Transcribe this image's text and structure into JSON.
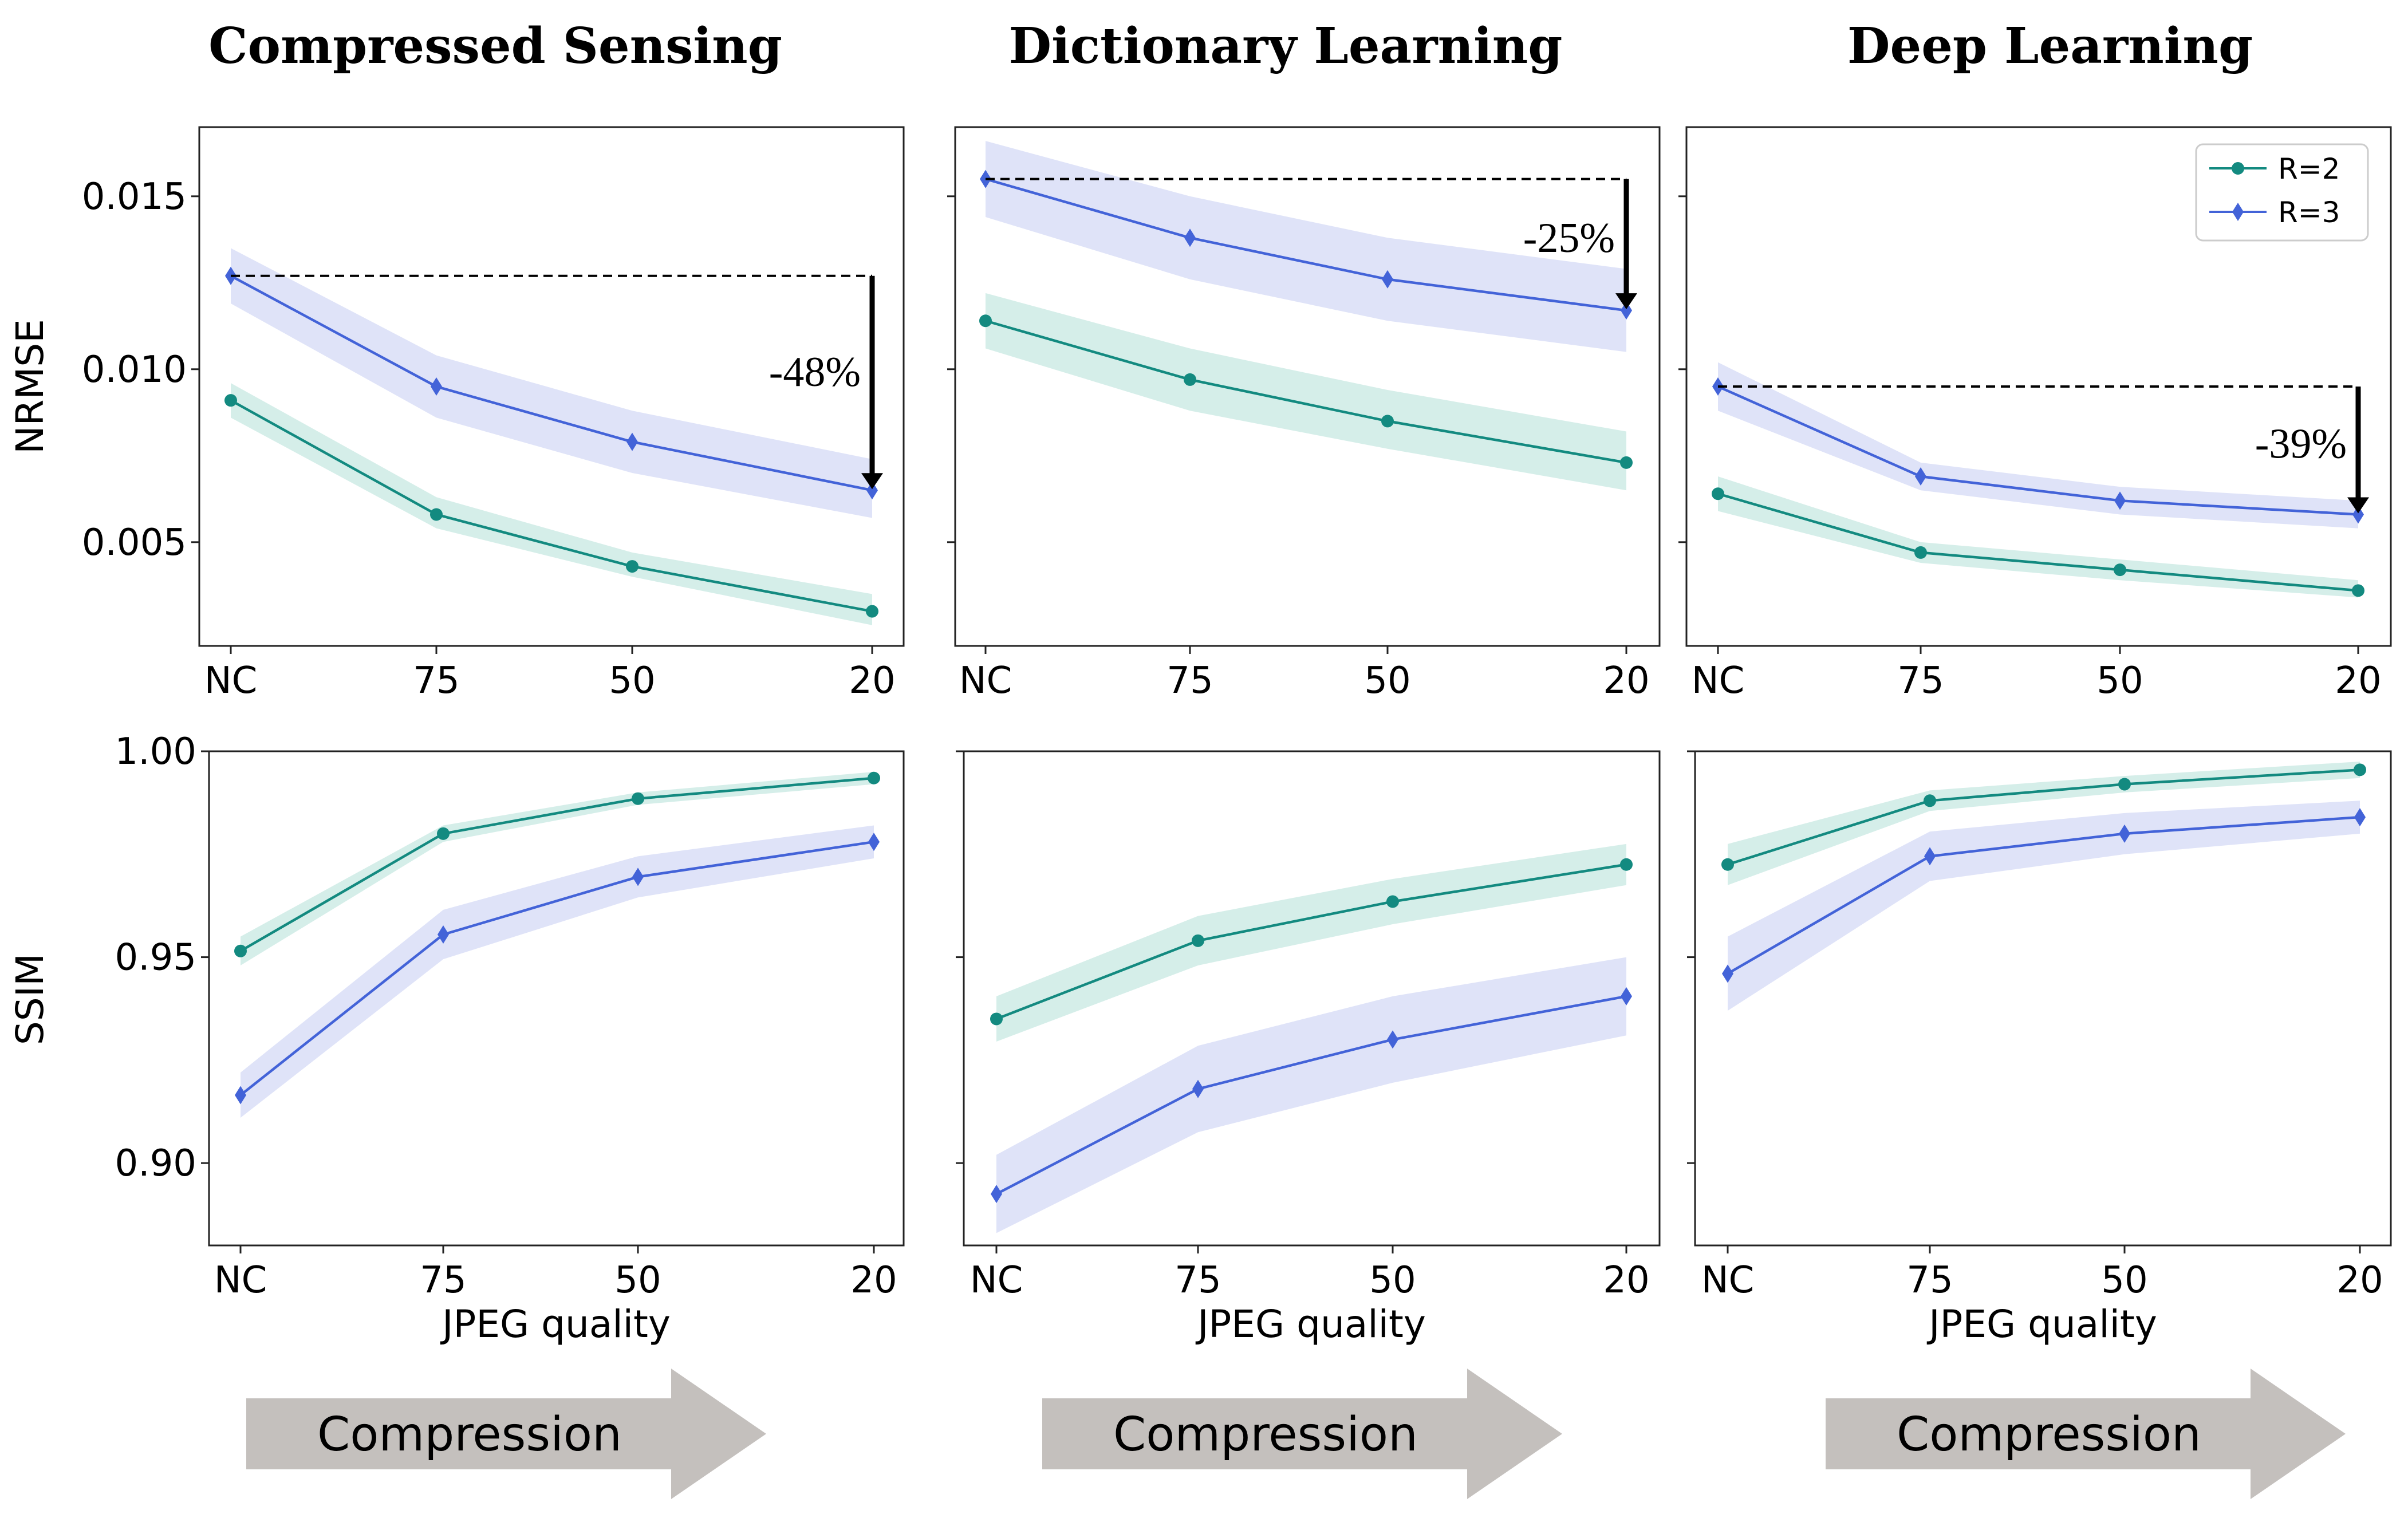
{
  "colors": {
    "r2": "#138a80",
    "r3": "#4363d8",
    "r2_band": "#c7e8e2",
    "r3_band": "#d4daf5",
    "compression_arrow": "#c4c0bd"
  },
  "columns": [
    {
      "title": "Compressed Sensing",
      "compression_label": "Compression"
    },
    {
      "title": "Dictionary Learning",
      "compression_label": "Compression"
    },
    {
      "title": "Deep Learning",
      "compression_label": "Compression"
    }
  ],
  "legend": {
    "entries": [
      "R=2",
      "R=3"
    ]
  },
  "chart_data": [
    {
      "type": "line",
      "row": "NRMSE",
      "column": "Compressed Sensing",
      "categories": [
        "NC",
        "75",
        "50",
        "20"
      ],
      "ylabel": "NRMSE",
      "xlabel": "",
      "ylim": [
        0.002,
        0.017
      ],
      "yticks": [
        "0.015",
        "0.010",
        "0.005"
      ],
      "ytick_values": [
        0.015,
        0.01,
        0.005
      ],
      "series": [
        {
          "name": "R=2",
          "values": [
            0.0091,
            0.0058,
            0.0043,
            0.003
          ],
          "lower": [
            0.0086,
            0.0054,
            0.004,
            0.0026
          ],
          "upper": [
            0.0096,
            0.0063,
            0.0047,
            0.0035
          ]
        },
        {
          "name": "R=3",
          "values": [
            0.0127,
            0.0095,
            0.0079,
            0.0065
          ],
          "lower": [
            0.0119,
            0.0086,
            0.007,
            0.0057
          ],
          "upper": [
            0.0135,
            0.0104,
            0.0088,
            0.0074
          ]
        }
      ],
      "annotation": {
        "text": "-48%",
        "from": 0.0127,
        "to": 0.0065
      }
    },
    {
      "type": "line",
      "row": "NRMSE",
      "column": "Dictionary Learning",
      "categories": [
        "NC",
        "75",
        "50",
        "20"
      ],
      "ylabel": "",
      "xlabel": "",
      "ylim": [
        0.002,
        0.017
      ],
      "yticks": [],
      "ytick_values": [
        0.015,
        0.01,
        0.005
      ],
      "series": [
        {
          "name": "R=2",
          "values": [
            0.0114,
            0.0097,
            0.0085,
            0.0073
          ],
          "lower": [
            0.0106,
            0.0088,
            0.0077,
            0.0065
          ],
          "upper": [
            0.0122,
            0.0106,
            0.0094,
            0.0082
          ]
        },
        {
          "name": "R=3",
          "values": [
            0.0155,
            0.0138,
            0.0126,
            0.0117
          ],
          "lower": [
            0.0144,
            0.0126,
            0.0114,
            0.0105
          ],
          "upper": [
            0.0166,
            0.015,
            0.0138,
            0.0129
          ]
        }
      ],
      "annotation": {
        "text": "-25%",
        "from": 0.0155,
        "to": 0.0117
      }
    },
    {
      "type": "line",
      "row": "NRMSE",
      "column": "Deep Learning",
      "categories": [
        "NC",
        "75",
        "50",
        "20"
      ],
      "ylabel": "",
      "xlabel": "",
      "ylim": [
        0.002,
        0.017
      ],
      "yticks": [],
      "ytick_values": [
        0.015,
        0.01,
        0.005
      ],
      "series": [
        {
          "name": "R=2",
          "values": [
            0.0064,
            0.0047,
            0.0042,
            0.0036
          ],
          "lower": [
            0.0059,
            0.0044,
            0.0039,
            0.0034
          ],
          "upper": [
            0.0069,
            0.005,
            0.0045,
            0.0039
          ]
        },
        {
          "name": "R=3",
          "values": [
            0.0095,
            0.0069,
            0.0062,
            0.0058
          ],
          "lower": [
            0.0088,
            0.0065,
            0.0058,
            0.0054
          ],
          "upper": [
            0.0102,
            0.0073,
            0.0066,
            0.0062
          ]
        }
      ],
      "annotation": {
        "text": "-39%",
        "from": 0.0095,
        "to": 0.0058
      }
    },
    {
      "type": "line",
      "row": "SSIM",
      "column": "Compressed Sensing",
      "categories": [
        "NC",
        "75",
        "50",
        "20"
      ],
      "ylabel": "SSIM",
      "xlabel": "JPEG quality",
      "ylim": [
        0.88,
        1.0
      ],
      "yticks": [
        "1.00",
        "0.95",
        "0.90"
      ],
      "ytick_values": [
        1.0,
        0.95,
        0.9
      ],
      "series": [
        {
          "name": "R=2",
          "values": [
            0.9515,
            0.98,
            0.9885,
            0.9935
          ],
          "lower": [
            0.948,
            0.978,
            0.987,
            0.992
          ],
          "upper": [
            0.955,
            0.982,
            0.99,
            0.995
          ]
        },
        {
          "name": "R=3",
          "values": [
            0.9165,
            0.9555,
            0.9695,
            0.978
          ],
          "lower": [
            0.911,
            0.9495,
            0.9645,
            0.974
          ],
          "upper": [
            0.922,
            0.9615,
            0.9745,
            0.982
          ]
        }
      ]
    },
    {
      "type": "line",
      "row": "SSIM",
      "column": "Dictionary Learning",
      "categories": [
        "NC",
        "75",
        "50",
        "20"
      ],
      "ylabel": "",
      "xlabel": "JPEG quality",
      "ylim": [
        0.88,
        1.0
      ],
      "yticks": [],
      "ytick_values": [
        1.0,
        0.95,
        0.9
      ],
      "series": [
        {
          "name": "R=2",
          "values": [
            0.935,
            0.954,
            0.9635,
            0.9725
          ],
          "lower": [
            0.9295,
            0.948,
            0.958,
            0.9675
          ],
          "upper": [
            0.9405,
            0.96,
            0.969,
            0.9775
          ]
        },
        {
          "name": "R=3",
          "values": [
            0.8925,
            0.918,
            0.93,
            0.9405
          ],
          "lower": [
            0.883,
            0.9075,
            0.9195,
            0.931
          ],
          "upper": [
            0.902,
            0.9285,
            0.9405,
            0.95
          ]
        }
      ]
    },
    {
      "type": "line",
      "row": "SSIM",
      "column": "Deep Learning",
      "categories": [
        "NC",
        "75",
        "50",
        "20"
      ],
      "ylabel": "",
      "xlabel": "JPEG quality",
      "ylim": [
        0.88,
        1.0
      ],
      "yticks": [],
      "ytick_values": [
        1.0,
        0.95,
        0.9
      ],
      "series": [
        {
          "name": "R=2",
          "values": [
            0.9725,
            0.988,
            0.992,
            0.9955
          ],
          "lower": [
            0.9675,
            0.9855,
            0.99,
            0.9935
          ],
          "upper": [
            0.9775,
            0.9905,
            0.994,
            0.9975
          ]
        },
        {
          "name": "R=3",
          "values": [
            0.946,
            0.9745,
            0.98,
            0.984
          ],
          "lower": [
            0.937,
            0.9685,
            0.975,
            0.98
          ],
          "upper": [
            0.955,
            0.9805,
            0.985,
            0.988
          ]
        }
      ]
    }
  ]
}
